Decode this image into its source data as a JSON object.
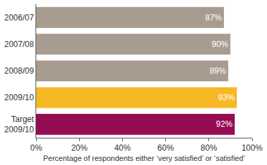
{
  "chart_data": {
    "type": "bar",
    "orientation": "horizontal",
    "categories": [
      "2006/07",
      "2007/08",
      "2008/09",
      "2009/10",
      "Target\n2009/10"
    ],
    "values": [
      87,
      90,
      89,
      93,
      92
    ],
    "value_labels": [
      "87%",
      "90%",
      "89%",
      "93%",
      "92%"
    ],
    "data_labels": true,
    "colors": [
      "#a89c90",
      "#a89c90",
      "#a89c90",
      "#f7b825",
      "#960c52"
    ],
    "x_label": "Percentage of respondents either ‘very satisfied’ or ‘satisfied’",
    "xlim": [
      0,
      100
    ],
    "xticks": [
      {
        "value": 0,
        "label": "0%"
      },
      {
        "value": 20,
        "label": "20%"
      },
      {
        "value": 40,
        "label": "40%"
      },
      {
        "value": 60,
        "label": "60%"
      },
      {
        "value": 80,
        "label": "80%"
      },
      {
        "value": 100,
        "label": "100%"
      }
    ],
    "grid": false
  }
}
